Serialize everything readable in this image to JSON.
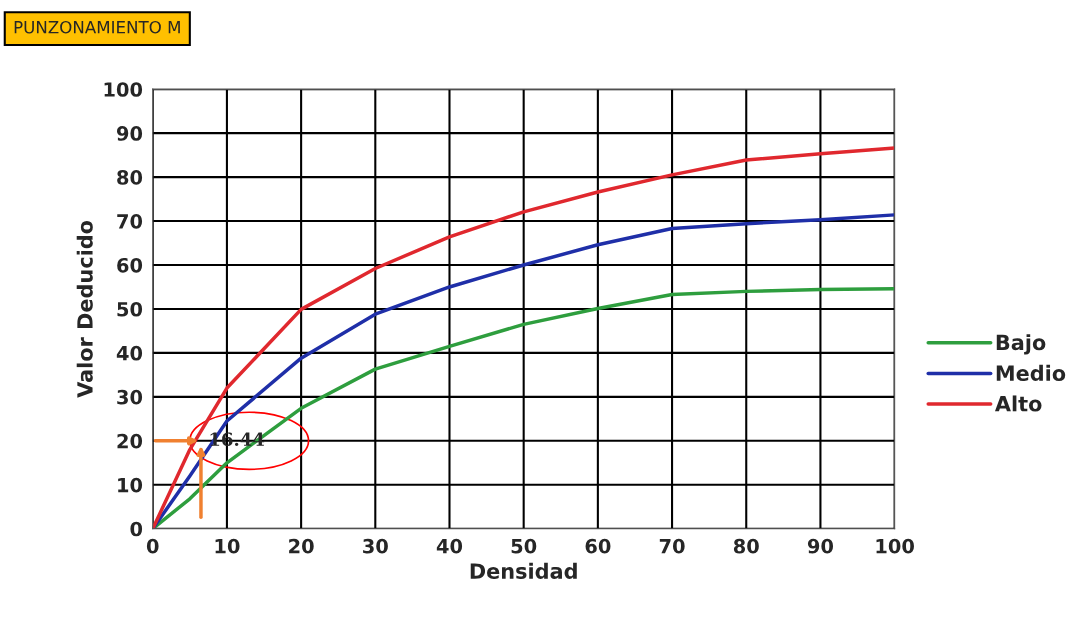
{
  "chart_data": {
    "type": "line",
    "title": "PUNZONAMIENTO M",
    "xlabel": "Densidad",
    "ylabel": "Valor Deducido",
    "x": [
      0,
      5,
      10,
      20,
      30,
      40,
      50,
      60,
      70,
      80,
      90,
      100
    ],
    "series": [
      {
        "name": "Bajo",
        "color": "#2e9e3e",
        "values": [
          0,
          6.8,
          15,
          27.4,
          36.3,
          41.5,
          46.5,
          50.1,
          53.3,
          54,
          54.4,
          54.6
        ]
      },
      {
        "name": "Medio",
        "color": "#1f2fa8",
        "values": [
          0,
          12,
          24.5,
          38.8,
          48.8,
          55,
          60,
          64.6,
          68.3,
          69.4,
          70.3,
          71.4
        ]
      },
      {
        "name": "Alto",
        "color": "#e0282e",
        "values": [
          0,
          18,
          32,
          49.9,
          59.2,
          66.4,
          72.1,
          76.6,
          80.5,
          83.9,
          85.3,
          86.6
        ]
      }
    ],
    "xlim": [
      0,
      100
    ],
    "ylim": [
      0,
      100
    ],
    "xticks": [
      0,
      10,
      20,
      30,
      40,
      50,
      60,
      70,
      80,
      90,
      100
    ],
    "yticks": [
      0,
      10,
      20,
      30,
      40,
      50,
      60,
      70,
      80,
      90,
      100
    ],
    "annotations": [
      {
        "text": "16.44",
        "x": 6.5,
        "y": 20
      }
    ],
    "grid": true,
    "legend": "right",
    "marker": "none",
    "line_style": "solid"
  }
}
